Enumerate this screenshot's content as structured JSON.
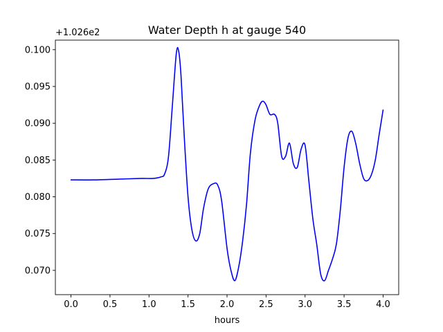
{
  "chart_data": {
    "type": "line",
    "title": "Water Depth h at gauge 540",
    "xlabel": "hours",
    "ylabel": "",
    "y_offset_label": "+1.026e2",
    "xlim": [
      -0.2,
      4.2
    ],
    "ylim": [
      0.0667,
      0.1013
    ],
    "x_ticks": [
      0.0,
      0.5,
      1.0,
      1.5,
      2.0,
      2.5,
      3.0,
      3.5,
      4.0
    ],
    "x_tick_labels": [
      "0.0",
      "0.5",
      "1.0",
      "1.5",
      "2.0",
      "2.5",
      "3.0",
      "3.5",
      "4.0"
    ],
    "y_ticks": [
      0.07,
      0.075,
      0.08,
      0.085,
      0.09,
      0.095,
      0.1
    ],
    "y_tick_labels": [
      "0.070",
      "0.075",
      "0.080",
      "0.085",
      "0.090",
      "0.095",
      "0.100"
    ],
    "grid": false,
    "legend": "none",
    "series": [
      {
        "color": "#0000ff",
        "x": [
          0.0,
          0.3,
          0.6,
          0.9,
          1.05,
          1.15,
          1.2,
          1.25,
          1.3,
          1.35,
          1.38,
          1.41,
          1.45,
          1.5,
          1.55,
          1.6,
          1.65,
          1.7,
          1.76,
          1.83,
          1.88,
          1.93,
          2.0,
          2.05,
          2.1,
          2.15,
          2.2,
          2.25,
          2.3,
          2.36,
          2.42,
          2.46,
          2.5,
          2.55,
          2.61,
          2.65,
          2.7,
          2.75,
          2.8,
          2.85,
          2.9,
          2.95,
          3.0,
          3.05,
          3.1,
          3.15,
          3.2,
          3.25,
          3.3,
          3.35,
          3.4,
          3.45,
          3.5,
          3.55,
          3.6,
          3.65,
          3.7,
          3.75,
          3.8,
          3.85,
          3.9,
          3.95,
          4.0
        ],
        "y": [
          0.0823,
          0.0823,
          0.0824,
          0.0825,
          0.0825,
          0.0827,
          0.0831,
          0.0855,
          0.0925,
          0.0995,
          0.0998,
          0.0965,
          0.0885,
          0.08,
          0.0755,
          0.074,
          0.075,
          0.0785,
          0.0811,
          0.0818,
          0.0816,
          0.0795,
          0.073,
          0.07,
          0.0686,
          0.0705,
          0.074,
          0.079,
          0.086,
          0.0905,
          0.0925,
          0.093,
          0.0925,
          0.0912,
          0.0912,
          0.09,
          0.0855,
          0.0855,
          0.0873,
          0.0845,
          0.084,
          0.0865,
          0.087,
          0.082,
          0.077,
          0.0735,
          0.0695,
          0.0686,
          0.07,
          0.0715,
          0.0735,
          0.078,
          0.084,
          0.088,
          0.0889,
          0.0872,
          0.0845,
          0.0825,
          0.0822,
          0.083,
          0.085,
          0.0885,
          0.0918
        ]
      }
    ]
  }
}
